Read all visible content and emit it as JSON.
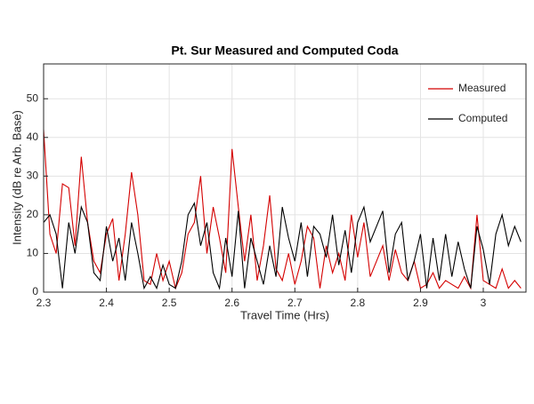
{
  "chart_data": {
    "type": "line",
    "title": "Pt. Sur Measured and Computed Coda",
    "xlabel": "Travel Time (Hrs)",
    "ylabel": "Intensity (dB re Arb. Base)",
    "x": [
      2.3,
      2.31,
      2.32,
      2.33,
      2.34,
      2.35,
      2.36,
      2.37,
      2.38,
      2.39,
      2.4,
      2.41,
      2.42,
      2.43,
      2.44,
      2.45,
      2.46,
      2.47,
      2.48,
      2.49,
      2.5,
      2.51,
      2.52,
      2.53,
      2.54,
      2.55,
      2.56,
      2.57,
      2.58,
      2.59,
      2.6,
      2.61,
      2.62,
      2.63,
      2.64,
      2.65,
      2.66,
      2.67,
      2.68,
      2.69,
      2.7,
      2.71,
      2.72,
      2.73,
      2.74,
      2.75,
      2.76,
      2.77,
      2.78,
      2.79,
      2.8,
      2.81,
      2.82,
      2.83,
      2.84,
      2.85,
      2.86,
      2.87,
      2.88,
      2.89,
      2.9,
      2.91,
      2.92,
      2.93,
      2.94,
      2.95,
      2.96,
      2.97,
      2.98,
      2.99,
      3.0,
      3.01,
      3.02,
      3.03,
      3.04,
      3.05,
      3.06
    ],
    "series": [
      {
        "name": "Measured",
        "color": "#d40000",
        "values": [
          42,
          15,
          10,
          28,
          27,
          12,
          35,
          18,
          8,
          5,
          15,
          19,
          3,
          15,
          31,
          20,
          3,
          2,
          10,
          3,
          8,
          1,
          5,
          15,
          18,
          30,
          10,
          22,
          14,
          5,
          37,
          22,
          8,
          20,
          3,
          12,
          25,
          6,
          3,
          10,
          2,
          8,
          17,
          14,
          1,
          12,
          5,
          10,
          3,
          20,
          9,
          18,
          4,
          8,
          12,
          3,
          11,
          5,
          3,
          8,
          1,
          2,
          5,
          1,
          3,
          2,
          1,
          4,
          1,
          20,
          3,
          2,
          1,
          6,
          1,
          3,
          1
        ]
      },
      {
        "name": "Computed",
        "color": "#000000",
        "values": [
          18,
          20,
          15,
          1,
          18,
          10,
          22,
          18,
          5,
          3,
          17,
          8,
          14,
          3,
          18,
          10,
          1,
          4,
          1,
          7,
          2,
          1,
          8,
          20,
          23,
          12,
          18,
          5,
          1,
          14,
          4,
          21,
          1,
          14,
          8,
          2,
          12,
          4,
          22,
          14,
          8,
          18,
          4,
          17,
          15,
          9,
          20,
          7,
          16,
          5,
          18,
          22,
          13,
          17,
          21,
          5,
          15,
          18,
          3,
          8,
          15,
          1,
          14,
          3,
          15,
          4,
          13,
          6,
          1,
          17,
          11,
          2,
          15,
          20,
          12,
          17,
          13
        ]
      }
    ],
    "xlim": [
      2.3,
      3.068
    ],
    "ylim": [
      0,
      59
    ],
    "xticks": [
      2.3,
      2.4,
      2.5,
      2.6,
      2.7,
      2.8,
      2.9,
      3
    ],
    "yticks": [
      0,
      10,
      20,
      30,
      40,
      50
    ],
    "grid": true,
    "legend": "northeast"
  }
}
